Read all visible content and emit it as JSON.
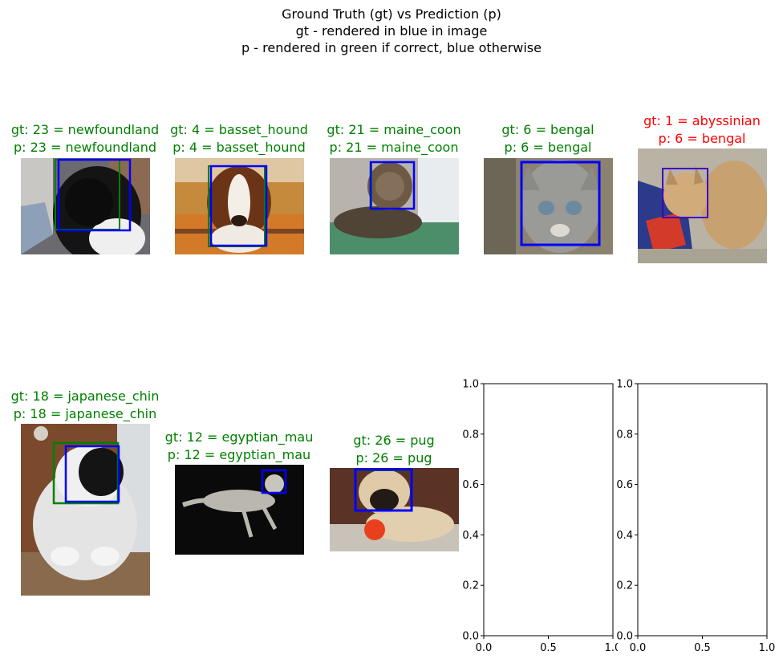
{
  "figure": {
    "title_lines": [
      "Ground Truth (gt) vs Prediction (p)",
      "gt - rendered in blue in image",
      "p - rendered in green if correct, blue otherwise"
    ]
  },
  "colors": {
    "correct": "#008000",
    "incorrect": "#ff0000",
    "gt_box": "#0000ff",
    "pred_box": "#008000"
  },
  "panels": [
    {
      "gt": "gt: 23 = newfoundland",
      "p": "p: 23 = newfoundland",
      "correct": true,
      "subject": "black dog"
    },
    {
      "gt": "gt: 4 = basset_hound",
      "p": "p: 4 = basset_hound",
      "correct": true,
      "subject": "basset hound"
    },
    {
      "gt": "gt: 21 = maine_coon",
      "p": "p: 21 = maine_coon",
      "correct": true,
      "subject": "tabby cat"
    },
    {
      "gt": "gt: 6 = bengal",
      "p": "p: 6 = bengal",
      "correct": true,
      "subject": "grey tabby cat"
    },
    {
      "gt": "gt: 1 = abyssinian",
      "p": "p: 6 = bengal",
      "correct": false,
      "subject": "ginger cat"
    },
    {
      "gt": "gt: 18 = japanese_chin",
      "p": "p: 18 = japanese_chin",
      "correct": true,
      "subject": "black white dog"
    },
    {
      "gt": "gt: 12 = egyptian_mau",
      "p": "p: 12 = egyptian_mau",
      "correct": true,
      "subject": "spotted cat"
    },
    {
      "gt": "gt: 26 = pug",
      "p": "p: 26 = pug",
      "correct": true,
      "subject": "pug"
    }
  ],
  "chart_data": [
    {
      "type": "scatter",
      "title": "",
      "xlabel": "",
      "ylabel": "",
      "xlim": [
        0.0,
        1.0
      ],
      "ylim": [
        0.0,
        1.0
      ],
      "xticks": [
        "0.0",
        "0.5",
        "1.0"
      ],
      "yticks": [
        "0.0",
        "0.2",
        "0.4",
        "0.6",
        "0.8",
        "1.0"
      ],
      "series": [],
      "grid": false
    },
    {
      "type": "scatter",
      "title": "",
      "xlabel": "",
      "ylabel": "",
      "xlim": [
        0.0,
        1.0
      ],
      "ylim": [
        0.0,
        1.0
      ],
      "xticks": [
        "0.0",
        "0.5",
        "1.0"
      ],
      "yticks": [
        "0.0",
        "0.2",
        "0.4",
        "0.6",
        "0.8",
        "1.0"
      ],
      "series": [],
      "grid": false
    }
  ]
}
